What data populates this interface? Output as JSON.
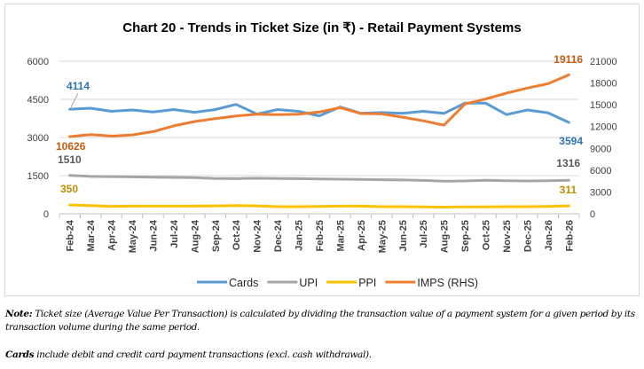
{
  "chart_data": {
    "type": "line",
    "title": "Chart 20 - Trends in Ticket Size (in ₹) - Retail Payment Systems",
    "categories": [
      "Feb-24",
      "Mar-24",
      "Apr-24",
      "May-24",
      "Jun-24",
      "Jul-24",
      "Aug-24",
      "Sep-24",
      "Oct-24",
      "Nov-24",
      "Dec-24",
      "Jan-25",
      "Feb-25",
      "Mar-25",
      "Apr-25",
      "May-25",
      "Jun-25",
      "Jul-25",
      "Aug-25",
      "Sep-25",
      "Oct-25",
      "Nov-25",
      "Dec-25",
      "Jan-26",
      "Feb-26"
    ],
    "y_left": {
      "range": [
        0,
        6000
      ],
      "ticks": [
        "0",
        "1500",
        "3000",
        "4500",
        "6000"
      ]
    },
    "y_right": {
      "range": [
        0,
        21000
      ],
      "ticks": [
        "0",
        "3000",
        "6000",
        "9000",
        "12000",
        "15000",
        "18000",
        "21000"
      ]
    },
    "grid": true,
    "legend_position": "bottom",
    "series": [
      {
        "name": "Cards",
        "axis": "left",
        "color": "#5b9bd5",
        "label_color": "#2e75b6",
        "values": [
          4114,
          4150,
          4030,
          4080,
          4000,
          4100,
          3990,
          4100,
          4300,
          3920,
          4100,
          4030,
          3850,
          4200,
          3950,
          3980,
          3950,
          4030,
          3950,
          4350,
          4350,
          3900,
          4080,
          3970,
          3594
        ],
        "first_label": "4114",
        "last_label": "3594"
      },
      {
        "name": "UPI",
        "axis": "left",
        "color": "#a5a5a5",
        "label_color": "#595959",
        "values": [
          1510,
          1470,
          1460,
          1450,
          1440,
          1430,
          1420,
          1390,
          1380,
          1400,
          1390,
          1380,
          1370,
          1360,
          1350,
          1340,
          1330,
          1310,
          1280,
          1290,
          1320,
          1300,
          1290,
          1300,
          1316
        ],
        "first_label": "1510",
        "last_label": "1316"
      },
      {
        "name": "PPI",
        "axis": "left",
        "color": "#ffc000",
        "label_color": "#bf9000",
        "values": [
          350,
          320,
          290,
          300,
          300,
          300,
          300,
          310,
          320,
          310,
          280,
          280,
          290,
          300,
          300,
          280,
          280,
          270,
          260,
          270,
          270,
          280,
          280,
          290,
          311
        ],
        "first_label": "350",
        "last_label": "311"
      },
      {
        "name": "IMPS (RHS)",
        "axis": "right",
        "color": "#ed7d31",
        "label_color": "#c55a11",
        "values": [
          10626,
          10900,
          10700,
          10850,
          11300,
          12100,
          12700,
          13100,
          13450,
          13700,
          13650,
          13700,
          14000,
          14600,
          13800,
          13750,
          13300,
          12800,
          12200,
          15100,
          15800,
          16600,
          17300,
          17900,
          19116
        ],
        "first_label": "10626",
        "last_label": "19116"
      }
    ]
  },
  "notes": {
    "note_lead": "Note:",
    "note_text": " Ticket size (Average Value Per Transaction) is calculated by dividing the transaction value of a payment system for a given period by its transaction volume during the same period.",
    "cards_lead": "Cards",
    "cards_text": " include debit and credit card payment transactions (excl. cash withdrawal)."
  }
}
